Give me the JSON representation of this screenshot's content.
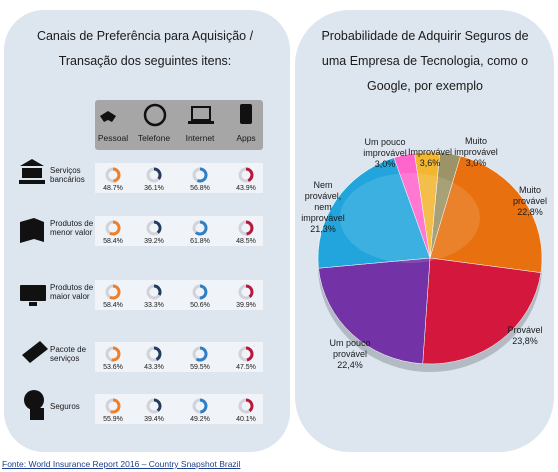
{
  "chart_data": [
    {
      "type": "donut_grid",
      "title": "Canais de Preferência para Aquisição / Transação dos seguintes itens:",
      "categories": [
        "Serviços bancários",
        "Produtos de menor valor",
        "Produtos de maior valor",
        "Pacote de serviços",
        "Seguros"
      ],
      "ylim": [
        0,
        100
      ],
      "series": [
        {
          "name": "Pessoal",
          "color": "#f07f2a",
          "values": [
            48.7,
            58.4,
            58.4,
            53.6,
            55.9
          ],
          "value_labels": [
            "48.7%",
            "58.4%",
            "58.4%",
            "53.6%",
            "55.9%"
          ]
        },
        {
          "name": "Telefone",
          "color": "#243a5e",
          "values": [
            36.1,
            39.2,
            33.3,
            43.3,
            39.4
          ],
          "value_labels": [
            "36.1%",
            "39.2%",
            "33.3%",
            "43.3%",
            "39.4%"
          ]
        },
        {
          "name": "Internet",
          "color": "#2e7fc6",
          "values": [
            56.8,
            61.8,
            50.6,
            59.5,
            49.2
          ],
          "value_labels": [
            "56.8%",
            "61.8%",
            "50.6%",
            "59.5%",
            "49.2%"
          ]
        },
        {
          "name": "Apps",
          "color": "#b8183e",
          "values": [
            43.9,
            48.5,
            39.9,
            47.5,
            40.1
          ],
          "value_labels": [
            "43.9%",
            "48.5%",
            "39.9%",
            "47.5%",
            "40.1%"
          ]
        }
      ]
    },
    {
      "type": "pie",
      "title": "Probabilidade de Adquirir Seguros de uma Empresa de Tecnologia, como o Google, por exemplo",
      "categories": [
        "Muito improvável",
        "Muito provável",
        "Provável",
        "Um pouco provável",
        "Nem provável, nem improvável",
        "Um pouco improvável",
        "Improvável"
      ],
      "values": [
        3.0,
        22.8,
        23.8,
        22.4,
        21.3,
        3.0,
        3.6
      ],
      "value_labels": [
        "3,0%",
        "22,8%",
        "23,8%",
        "22,4%",
        "21,3%",
        "3,0%",
        "3,6%"
      ],
      "colors": [
        "#9c9466",
        "#e8700e",
        "#d4173c",
        "#7332a6",
        "#22a5dc",
        "#ff66cc",
        "#f2b630"
      ]
    }
  ],
  "source": "Fonte: World Insurance Report 2016 – Country Snapshot Brazil"
}
